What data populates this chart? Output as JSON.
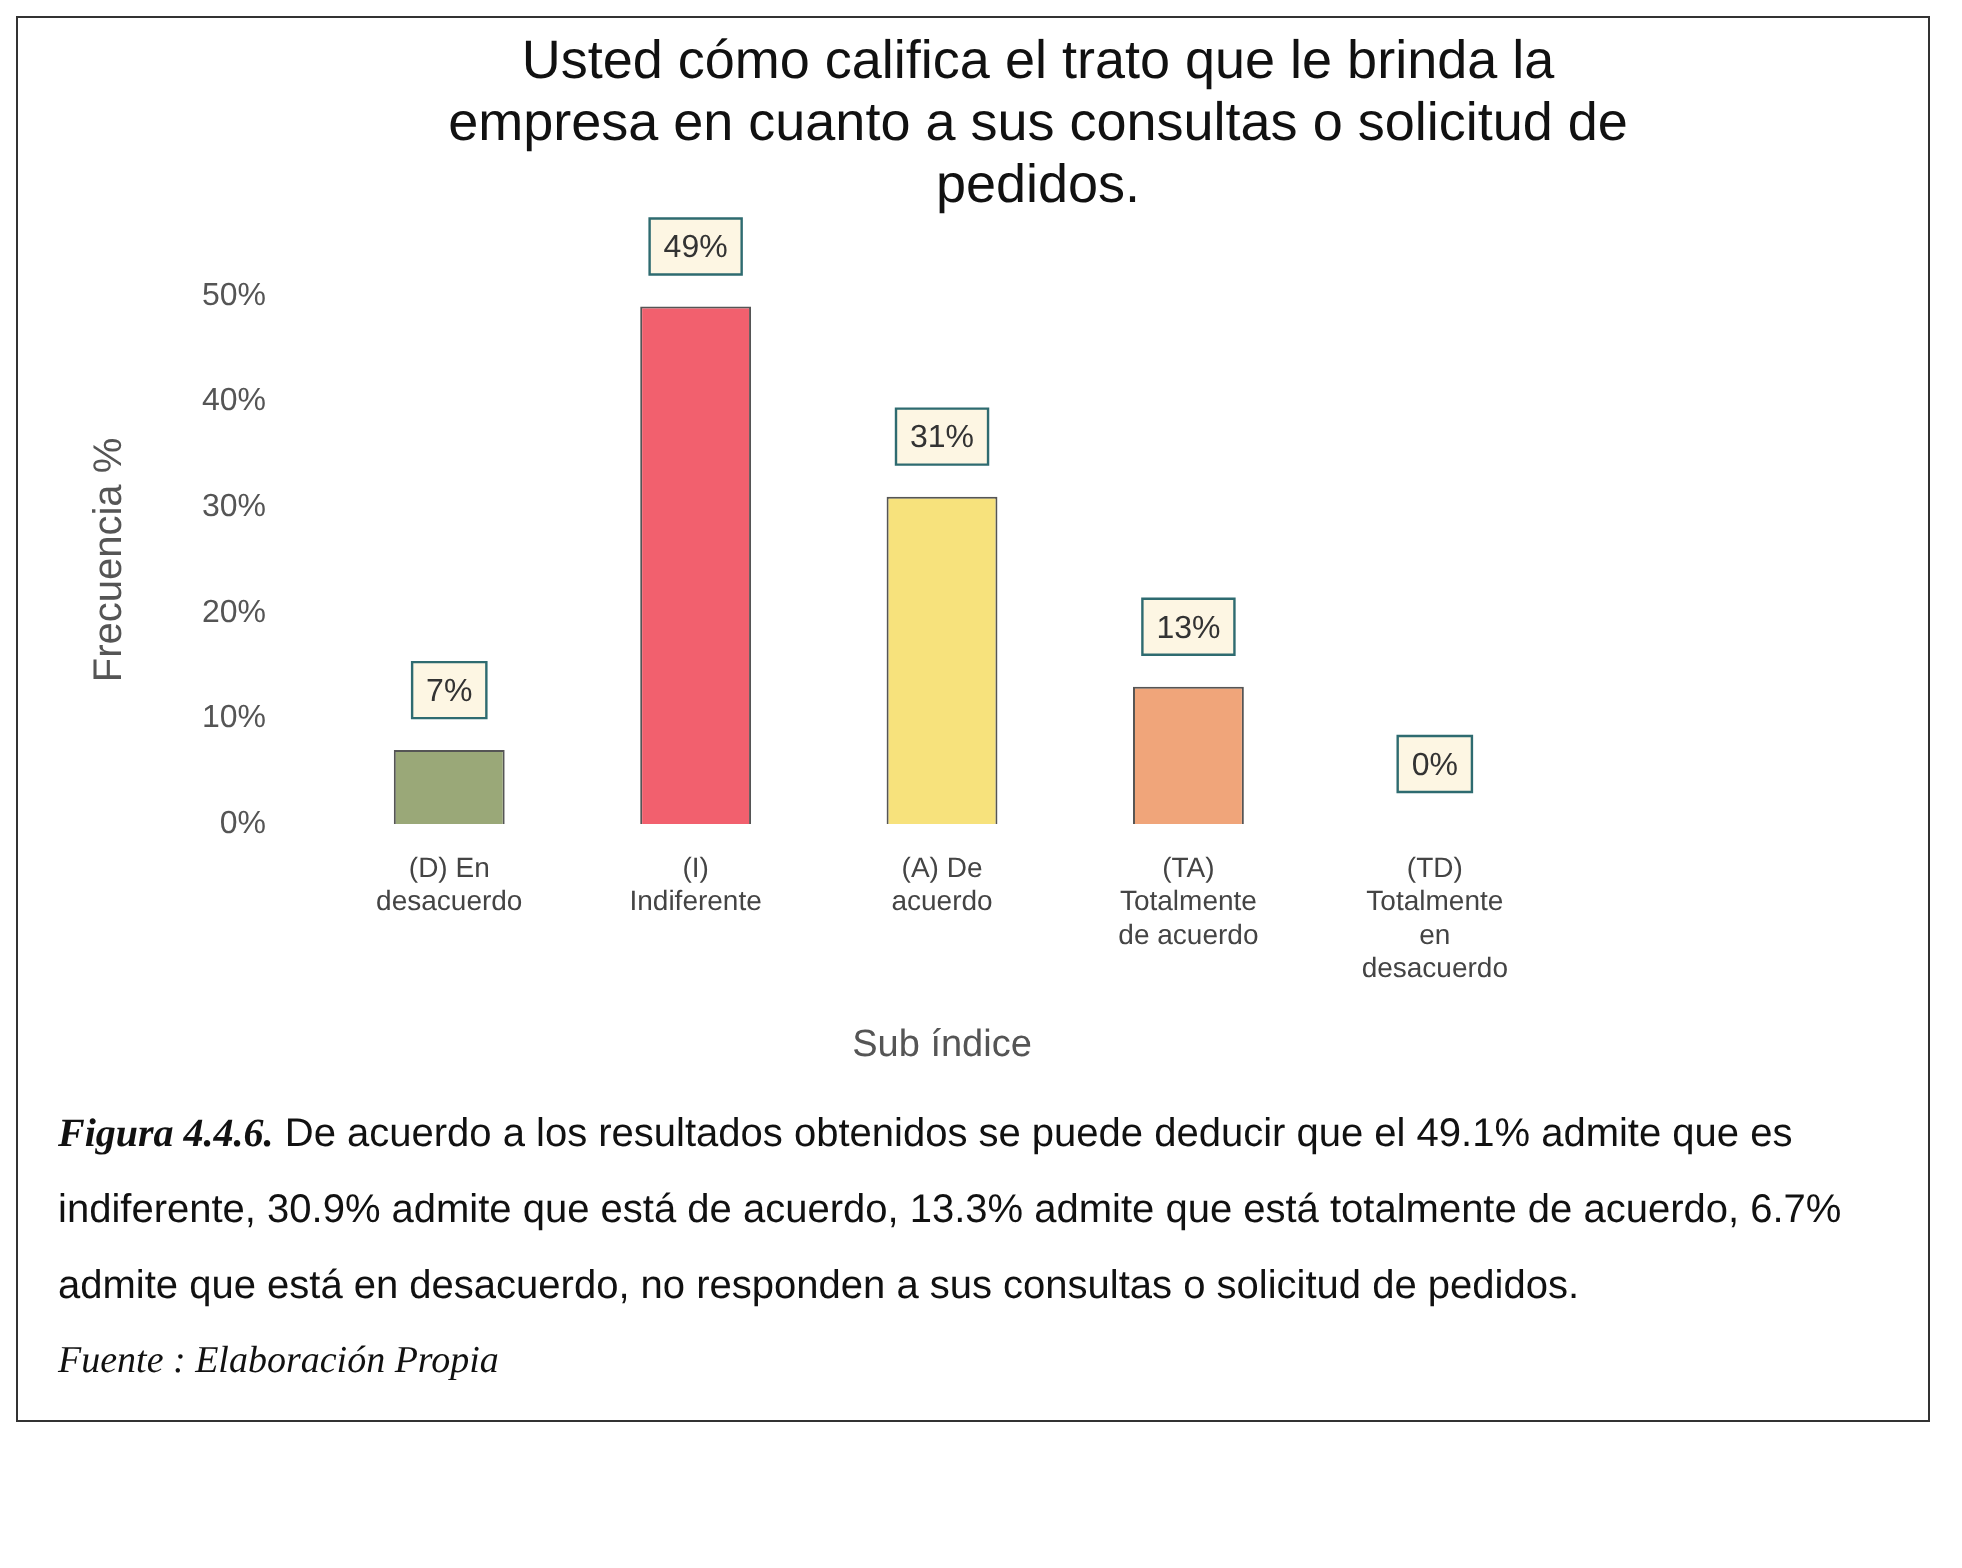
{
  "chart_data": {
    "type": "bar",
    "title": "Usted cómo califica el trato que le brinda la empresa en cuanto a sus consultas o solicitud de pedidos.",
    "xlabel": "Sub índice",
    "ylabel": "Frecuencia %",
    "categories": [
      "(D) En desacuerdo",
      "(I) Indiferente",
      "(A) De acuerdo",
      "(TA) Totalmente de acuerdo",
      "(TD) Totalmente en desacuerdo"
    ],
    "values": [
      7,
      49,
      31,
      13,
      0
    ],
    "value_labels": [
      "7%",
      "49%",
      "31%",
      "13%",
      "0%"
    ],
    "colors": [
      "#9aa878",
      "#f2606e",
      "#f7e27c",
      "#f0a57a",
      "#b4a4d8"
    ],
    "ylim": [
      0,
      50
    ],
    "yticks": [
      {
        "value": 0,
        "label": "0%"
      },
      {
        "value": 10,
        "label": "10%"
      },
      {
        "value": 20,
        "label": "20%"
      },
      {
        "value": 30,
        "label": "30%"
      },
      {
        "value": 40,
        "label": "40%"
      },
      {
        "value": 50,
        "label": "50%"
      }
    ],
    "grid": false,
    "legend": false,
    "annotations": [
      "Figura 4.4.6.",
      "De acuerdo a los resultados obtenidos se puede deducir que el 49.1% admite que es indiferente, 30.9% admite que está  de acuerdo, 13.3% admite que está totalmente de acuerdo, 6.7% admite que está en desacuerdo, no responden a sus consultas o solicitud de pedidos.",
      "Fuente : Elaboración Propia"
    ]
  }
}
